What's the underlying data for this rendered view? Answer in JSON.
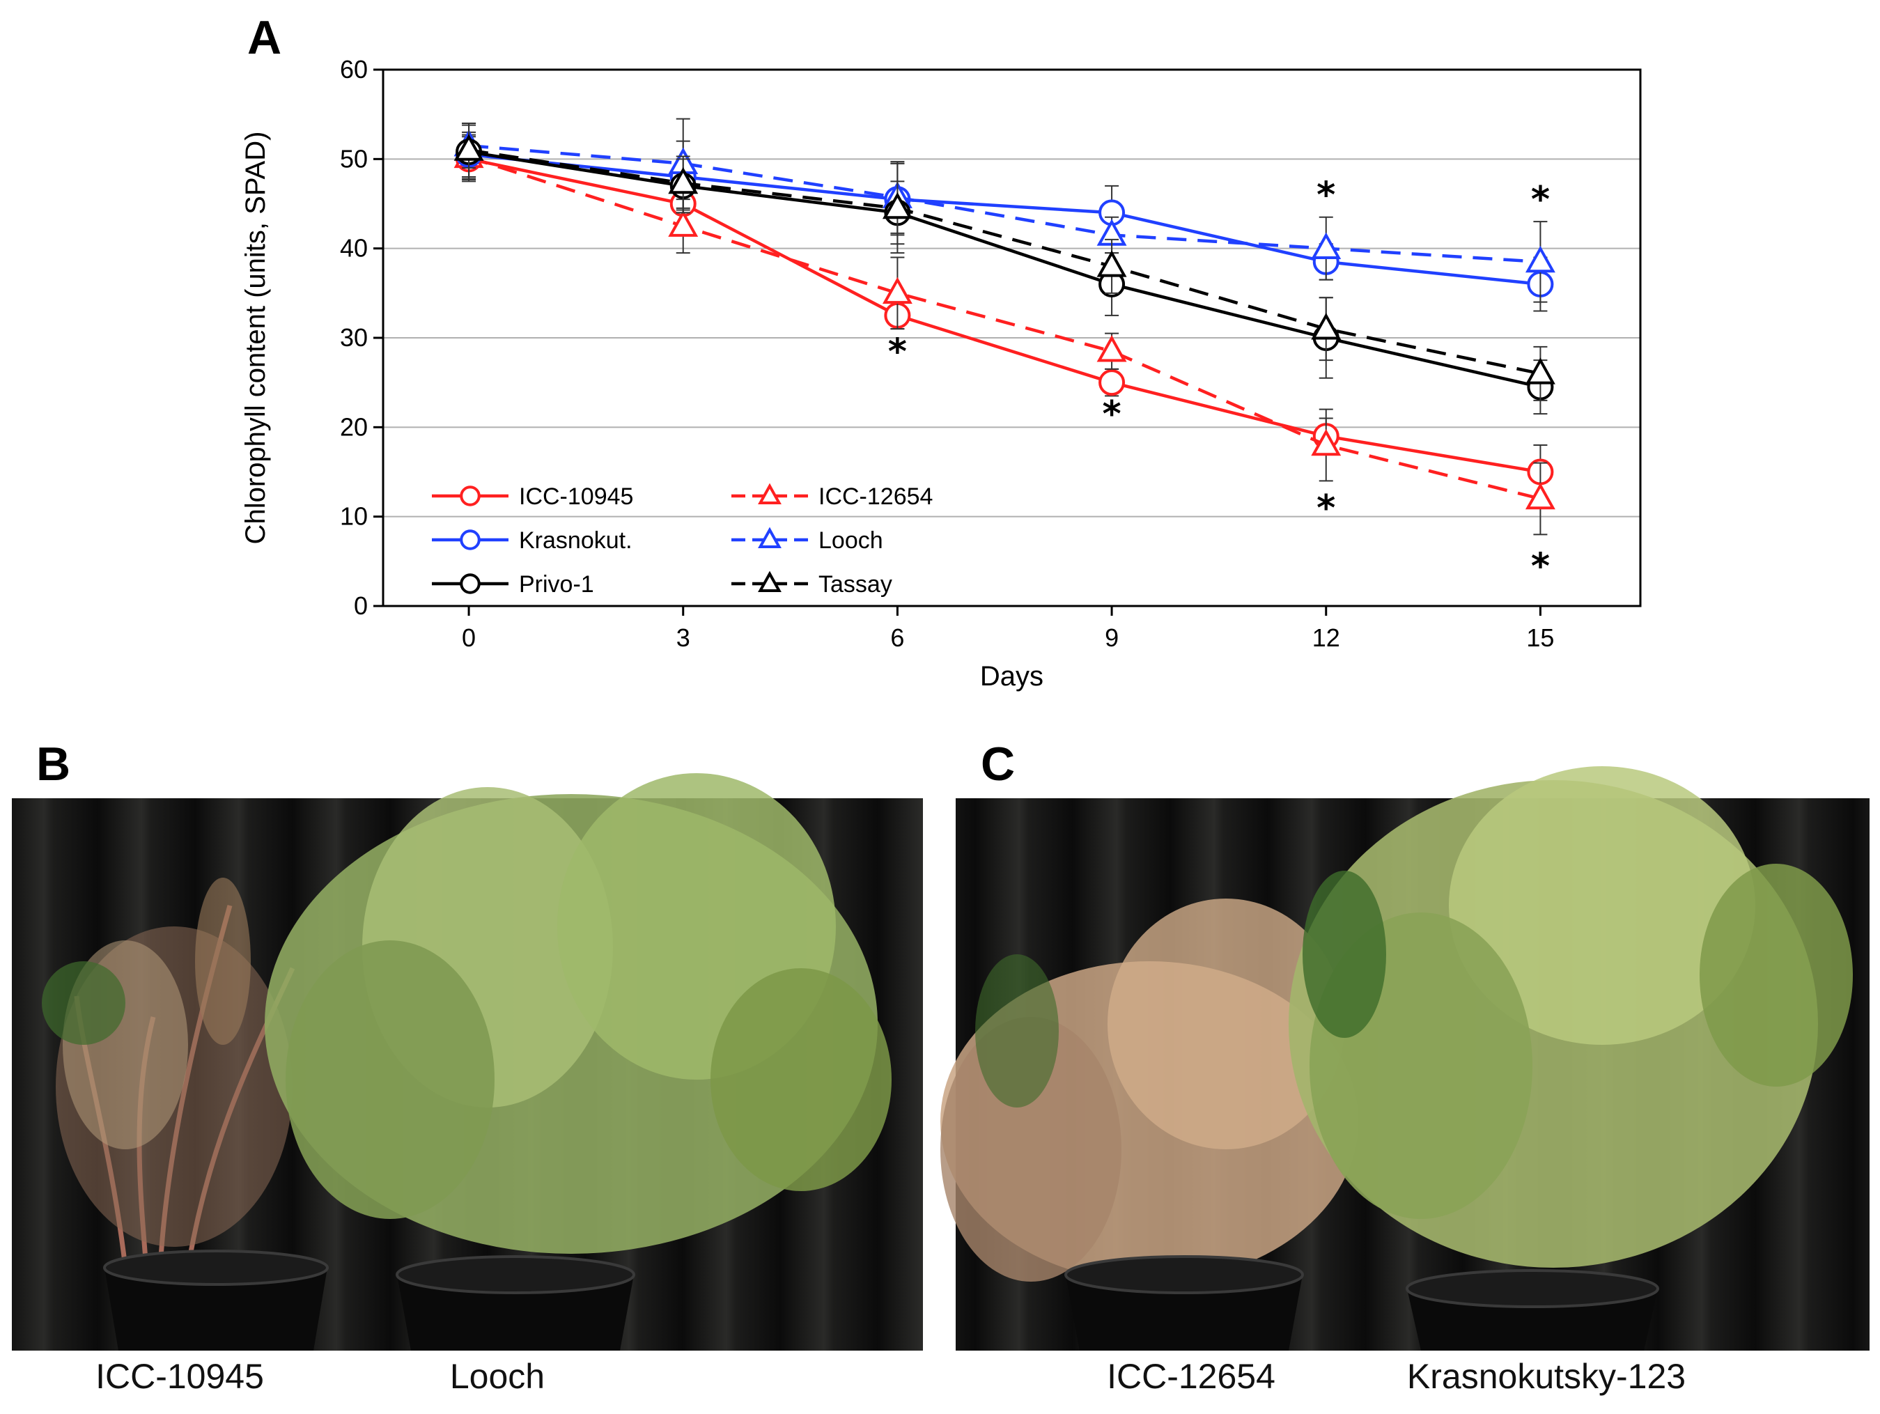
{
  "panels": {
    "a": "A",
    "b": "B",
    "c": "C"
  },
  "chart_data": {
    "type": "line",
    "title": "",
    "xlabel": "Days",
    "ylabel": "Chlorophyll content (units, SPAD)",
    "x": [
      0,
      3,
      6,
      9,
      12,
      15
    ],
    "x_ticks": [
      "0",
      "3",
      "6",
      "9",
      "12",
      "15"
    ],
    "ylim": [
      0,
      60
    ],
    "y_ticks": [
      "0",
      "10",
      "20",
      "30",
      "40",
      "50",
      "60"
    ],
    "grid": "horizontal",
    "legend_position": "bottom-left",
    "series": [
      {
        "name": "ICC-10945",
        "color": "#ff2020",
        "marker": "circle",
        "dashed": false,
        "values": [
          50.0,
          45.0,
          32.5,
          25.0,
          19.0,
          15.0
        ],
        "errors": [
          2.5,
          3.0,
          1.5,
          1.5,
          2.0,
          3.0
        ]
      },
      {
        "name": "ICC-12654",
        "color": "#ff2020",
        "marker": "triangle",
        "dashed": true,
        "values": [
          50.2,
          42.5,
          35.0,
          28.5,
          18.0,
          12.0
        ],
        "errors": [
          2.5,
          3.0,
          4.0,
          2.0,
          4.0,
          4.0
        ]
      },
      {
        "name": "Krasnokut.",
        "color": "#2040ff",
        "marker": "circle",
        "dashed": false,
        "values": [
          50.5,
          48.0,
          45.5,
          44.0,
          38.5,
          36.0
        ],
        "errors": [
          2.5,
          4.0,
          4.0,
          3.0,
          2.0,
          3.0
        ]
      },
      {
        "name": "Looch",
        "color": "#2040ff",
        "marker": "triangle",
        "dashed": true,
        "values": [
          51.5,
          49.5,
          45.7,
          41.5,
          40.0,
          38.5
        ],
        "errors": [
          2.5,
          5.0,
          4.0,
          2.0,
          3.5,
          4.5
        ]
      },
      {
        "name": "Privo-1",
        "color": "#000000",
        "marker": "circle",
        "dashed": false,
        "values": [
          50.8,
          47.0,
          44.0,
          36.0,
          30.0,
          24.5
        ],
        "errors": [
          3.0,
          3.0,
          3.5,
          3.5,
          4.5,
          3.0
        ]
      },
      {
        "name": "Tassay",
        "color": "#000000",
        "marker": "triangle",
        "dashed": true,
        "values": [
          51.0,
          47.3,
          44.5,
          38.0,
          31.0,
          26.0
        ],
        "errors": [
          3.0,
          3.0,
          5.0,
          3.0,
          3.5,
          3.0
        ]
      }
    ],
    "significance_marks": [
      {
        "x": 6,
        "y": 28.5,
        "label": "*"
      },
      {
        "x": 9,
        "y": 21.5,
        "label": "*"
      },
      {
        "x": 12,
        "y": 11.0,
        "label": "*"
      },
      {
        "x": 12,
        "y": 46.0,
        "label": "*"
      },
      {
        "x": 15,
        "y": 45.5,
        "label": "*"
      },
      {
        "x": 15,
        "y": 4.5,
        "label": "*"
      }
    ]
  },
  "photos": {
    "b": {
      "left_label": "ICC-10945",
      "right_label": "Looch"
    },
    "c": {
      "left_label": "ICC-12654",
      "right_label": "Krasnokutsky-123"
    }
  }
}
